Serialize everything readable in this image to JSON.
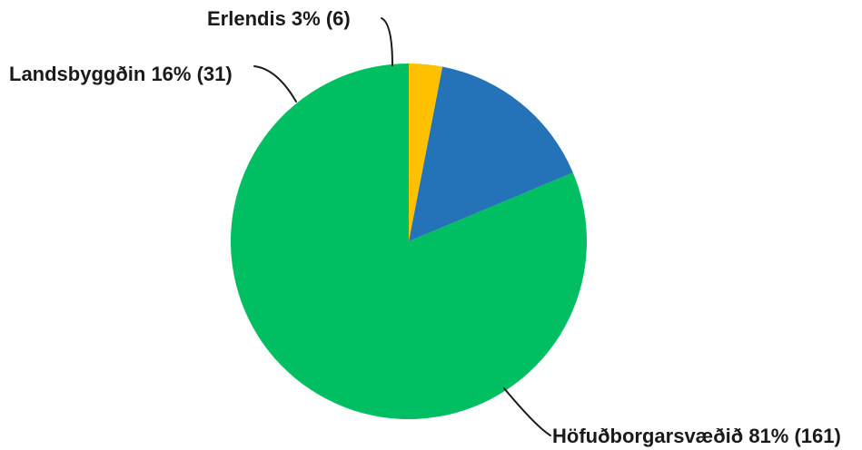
{
  "chart_data": {
    "type": "pie",
    "slices": [
      {
        "label": "Höfuðborgarsvæðið 81% (161)",
        "value": 161,
        "percent": 81,
        "color": "#00bf63"
      },
      {
        "label": "Landsbyggðin 16% (31)",
        "value": 31,
        "percent": 16,
        "color": "#2472b8"
      },
      {
        "label": "Erlendis 3% (6)",
        "value": 6,
        "percent": 3,
        "color": "#ffc000"
      }
    ],
    "legend": "none",
    "start_angle": "12 o'clock",
    "direction": "counter-clockwise"
  }
}
